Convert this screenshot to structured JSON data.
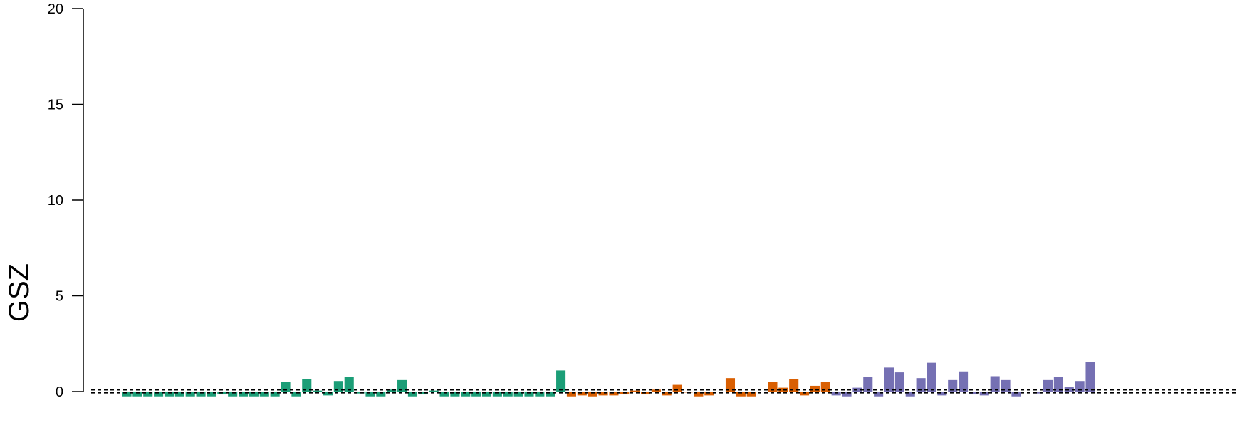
{
  "chart_data": {
    "type": "bar",
    "ylabel": "GSZ",
    "ylim": [
      0,
      20
    ],
    "yticks": [
      0,
      5,
      10,
      15,
      20
    ],
    "reference_lines": [
      -0.05,
      0.1
    ],
    "groups": [
      {
        "color": "#1b9e77",
        "values": [
          -0.25,
          -0.25,
          -0.25,
          -0.25,
          -0.25,
          -0.25,
          -0.25,
          -0.25,
          -0.25,
          -0.15,
          -0.25,
          -0.25,
          -0.25,
          -0.25,
          -0.25,
          0.5,
          -0.25,
          0.65,
          0.05,
          -0.2,
          0.55,
          0.75,
          -0.1,
          -0.25,
          -0.25,
          0.1,
          0.6,
          -0.25,
          -0.15,
          0.05,
          -0.25,
          -0.25,
          -0.25,
          -0.25,
          -0.25,
          -0.25,
          -0.25,
          -0.25,
          -0.25,
          -0.25,
          -0.25,
          1.1
        ]
      },
      {
        "color": "#d95f02",
        "values": [
          -0.25,
          -0.2,
          -0.25,
          -0.2,
          -0.2,
          -0.15,
          0.05,
          -0.15,
          0.1,
          -0.2,
          0.35,
          -0.05,
          -0.25,
          -0.2,
          0.0,
          0.7,
          -0.25,
          -0.25,
          0.0,
          0.5,
          0.2,
          0.65,
          -0.2,
          0.3,
          0.5
        ]
      },
      {
        "color": "#7570b3",
        "values": [
          -0.2,
          -0.25,
          0.2,
          0.75,
          -0.25,
          1.25,
          1.0,
          -0.25,
          0.7,
          1.5,
          -0.2,
          0.6,
          1.05,
          -0.15,
          -0.2,
          0.8,
          0.6,
          -0.25,
          0.0,
          -0.1,
          0.6,
          0.75,
          0.25,
          0.55,
          1.55
        ]
      }
    ]
  }
}
